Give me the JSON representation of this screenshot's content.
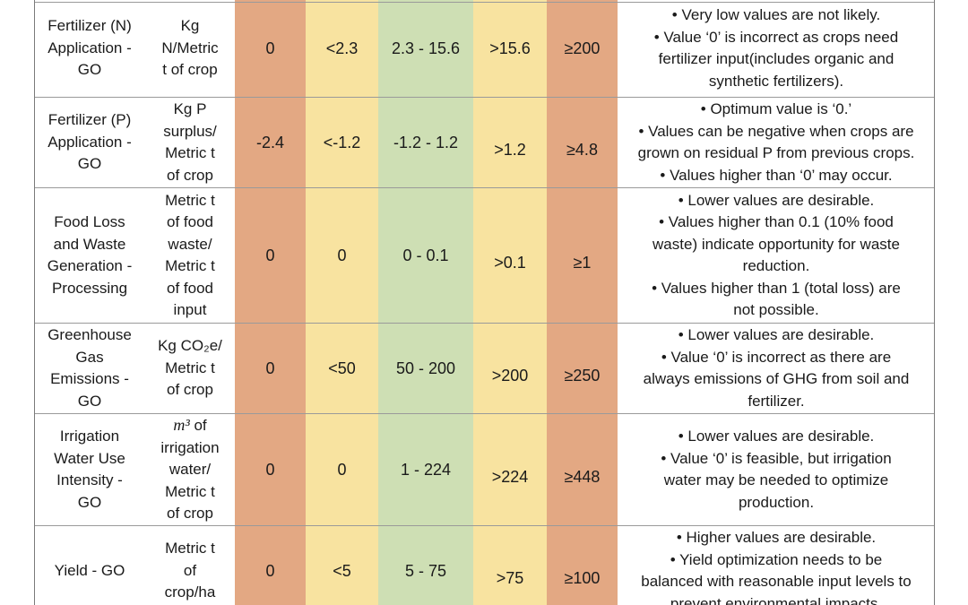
{
  "rows": [
    {
      "indicator": [
        "Fertilizer (N)",
        "Application -",
        "GO"
      ],
      "unit": [
        "Kg",
        "N/Metric",
        "t of crop"
      ],
      "b1": "0",
      "b2": "<2.3",
      "b3": "2.3 - 15.6",
      "b4": ">15.6",
      "b5": "≥200",
      "notes": [
        "• Very low values are not likely.",
        "• Value ‘0’ is incorrect as crops need",
        "fertilizer input(includes organic and",
        "synthetic fertilizers)."
      ]
    },
    {
      "indicator": [
        "Fertilizer (P)",
        "Application -",
        "GO"
      ],
      "unit": [
        "Kg P",
        "surplus/",
        "Metric t",
        "of crop"
      ],
      "b1": "-2.4",
      "b2": "<-1.2",
      "b3": "-1.2 - 1.2",
      "b4": ">1.2",
      "b5": "≥4.8",
      "notes": [
        "• Optimum value is ‘0.’",
        "• Values can be negative when crops are",
        "grown on residual P from previous crops.",
        "• Values higher than ‘0’ may occur."
      ]
    },
    {
      "indicator": [
        "Food Loss",
        "and Waste",
        "Generation -",
        "Processing"
      ],
      "unit": [
        "Metric t",
        "of food",
        "waste/",
        "Metric t",
        "of food",
        "input"
      ],
      "b1": "0",
      "b2": "0",
      "b3": "0 - 0.1",
      "b4": ">0.1",
      "b5": "≥1",
      "notes": [
        "• Lower values are desirable.",
        "• Values higher than 0.1 (10% food",
        "waste) indicate opportunity for waste",
        "reduction.",
        "• Values higher than 1 (total loss) are",
        "not possible."
      ]
    },
    {
      "indicator": [
        "Greenhouse",
        "Gas",
        "Emissions -",
        "GO"
      ],
      "unit": [
        "Kg CO₂e/",
        "Metric t",
        "of crop"
      ],
      "b1": "0",
      "b2": "<50",
      "b3": "50 - 200",
      "b4": ">200",
      "b5": "≥250",
      "notes": [
        "• Lower values are desirable.",
        "• Value ‘0’ is incorrect as there are",
        "always emissions of GHG from soil and",
        "fertilizer."
      ]
    },
    {
      "indicator": [
        "Irrigation",
        "Water Use",
        "Intensity -",
        "GO"
      ],
      "unit_math": "m³",
      "unit": [
        "of",
        "irrigation",
        "water/",
        "Metric t",
        "of crop"
      ],
      "b1": "0",
      "b2": "0",
      "b3": "1 - 224",
      "b4": ">224",
      "b5": "≥448",
      "notes": [
        "• Lower values are desirable.",
        "• Value ‘0’ is feasible, but irrigation",
        "water may be needed to optimize",
        "production."
      ]
    },
    {
      "indicator": [
        "Yield - GO"
      ],
      "unit": [
        "Metric t",
        "of",
        "crop/ha"
      ],
      "b1": "0",
      "b2": "<5",
      "b3": "5 - 75",
      "b4": ">75",
      "b5": "≥100",
      "notes": [
        "• Higher values are desirable.",
        "• Yield optimization needs to be",
        "balanced with reasonable input levels to",
        "prevent environmental impacts."
      ]
    }
  ]
}
